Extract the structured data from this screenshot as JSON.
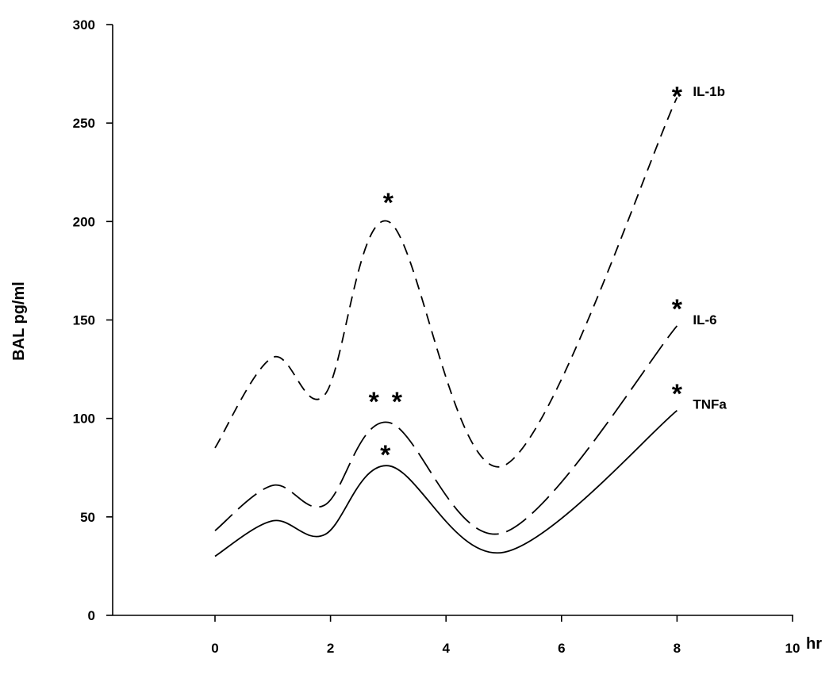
{
  "chart_data": {
    "type": "line",
    "title": "",
    "xlabel": "hr",
    "ylabel": "BAL pg/ml",
    "xlim": [
      -1.8,
      10
    ],
    "ylim": [
      0,
      300
    ],
    "x_ticks": [
      "0",
      "2",
      "4",
      "6",
      "8",
      "10"
    ],
    "y_ticks": [
      "0",
      "50",
      "100",
      "150",
      "200",
      "250",
      "300"
    ],
    "grid": false,
    "legend": "none",
    "series": [
      {
        "name": "IL-1b",
        "style": "short-dash",
        "points": [
          [
            0,
            85
          ],
          [
            1,
            131
          ],
          [
            1.9,
            112
          ],
          [
            3,
            200
          ],
          [
            5,
            76
          ],
          [
            8,
            263
          ]
        ]
      },
      {
        "name": "IL-6",
        "style": "long-dash",
        "points": [
          [
            0,
            43
          ],
          [
            1,
            66
          ],
          [
            1.9,
            56
          ],
          [
            3,
            98
          ],
          [
            5,
            42
          ],
          [
            8,
            147
          ]
        ]
      },
      {
        "name": "TNFa",
        "style": "solid",
        "points": [
          [
            0,
            30
          ],
          [
            1,
            48
          ],
          [
            1.9,
            41
          ],
          [
            3,
            76
          ],
          [
            5,
            32
          ],
          [
            8,
            104
          ]
        ]
      }
    ],
    "annotations": [
      {
        "text": "*",
        "x": 3.0,
        "y": 213
      },
      {
        "text": "*",
        "x": 2.75,
        "y": 112
      },
      {
        "text": "*",
        "x": 3.15,
        "y": 112
      },
      {
        "text": "*",
        "x": 2.95,
        "y": 85
      },
      {
        "text": "*",
        "x": 8.0,
        "y": 267
      },
      {
        "text": "*",
        "x": 8.0,
        "y": 159
      },
      {
        "text": "*",
        "x": 8.0,
        "y": 116
      }
    ]
  }
}
